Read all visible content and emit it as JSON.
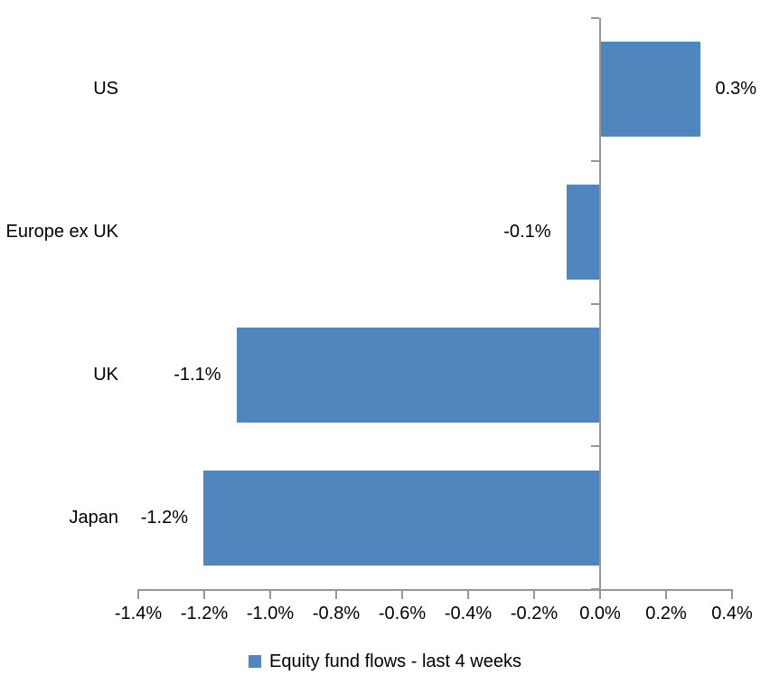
{
  "chart_data": {
    "type": "bar",
    "orientation": "horizontal",
    "title": "",
    "xlabel": "",
    "ylabel": "",
    "categories": [
      "US",
      "Europe ex UK",
      "UK",
      "Japan"
    ],
    "series": [
      {
        "name": "Equity fund flows - last 4 weeks",
        "values": [
          0.3,
          -0.1,
          -1.1,
          -1.2
        ],
        "data_labels": [
          "0.3%",
          "-0.1%",
          "-1.1%",
          "-1.2%"
        ],
        "color": "#4e86bd"
      }
    ],
    "xlim": [
      -1.4,
      0.4
    ],
    "x_ticks": [
      -1.4,
      -1.2,
      -1.0,
      -0.8,
      -0.6,
      -0.4,
      -0.2,
      0.0,
      0.2,
      0.4
    ],
    "x_tick_labels": [
      "-1.4%",
      "-1.2%",
      "-1.0%",
      "-0.8%",
      "-0.6%",
      "-0.4%",
      "-0.2%",
      "0.0%",
      "0.2%",
      "0.4%"
    ],
    "grid": false,
    "legend_position": "bottom",
    "colors": {
      "bar": "#4e86bd",
      "axis": "#969696",
      "text": "#000000",
      "background": "#ffffff"
    }
  }
}
